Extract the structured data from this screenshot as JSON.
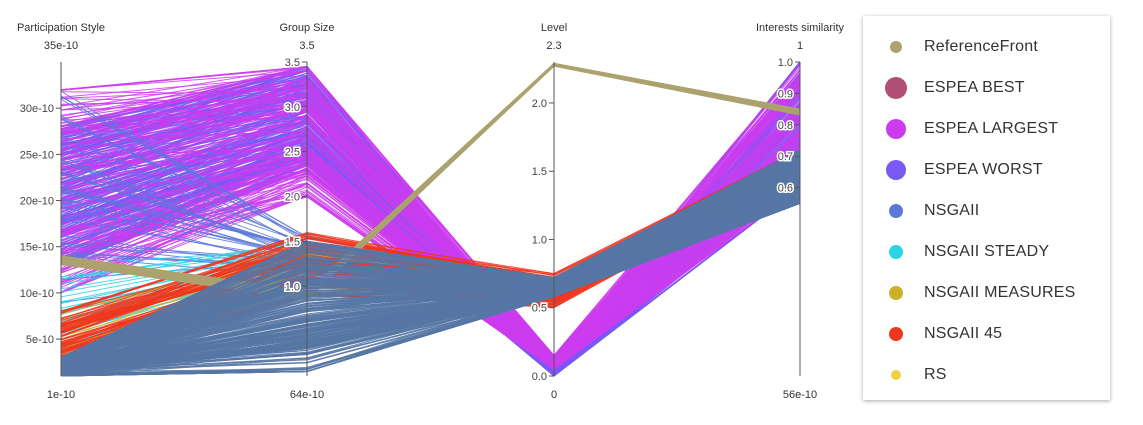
{
  "chart_data": {
    "type": "parallel-coordinates",
    "axes": [
      {
        "name": "Participation Style",
        "top_label": "35e-10",
        "bottom_label": "1e-10",
        "range": [
          1,
          35
        ],
        "scale_unit": "e-10",
        "ticks": [
          {
            "v": 5,
            "label": "5e-10"
          },
          {
            "v": 10,
            "label": "10e-10"
          },
          {
            "v": 15,
            "label": "15e-10"
          },
          {
            "v": 20,
            "label": "20e-10"
          },
          {
            "v": 25,
            "label": "25e-10"
          },
          {
            "v": 30,
            "label": "30e-10"
          }
        ]
      },
      {
        "name": "Group Size",
        "top_label": "3.5",
        "bottom_label": "64e-10",
        "range": [
          6.4e-09,
          3.5
        ],
        "ticks": [
          {
            "v": 1.0,
            "label": "1.0"
          },
          {
            "v": 1.5,
            "label": "1.5"
          },
          {
            "v": 2.0,
            "label": "2.0"
          },
          {
            "v": 2.5,
            "label": "2.5"
          },
          {
            "v": 3.0,
            "label": "3.0"
          },
          {
            "v": 3.5,
            "label": "3.5"
          }
        ]
      },
      {
        "name": "Level",
        "top_label": "2.3",
        "bottom_label": "0",
        "range": [
          0,
          2.3
        ],
        "ticks": [
          {
            "v": 0.0,
            "label": "0.0"
          },
          {
            "v": 0.5,
            "label": "0.5"
          },
          {
            "v": 1.0,
            "label": "1.0"
          },
          {
            "v": 1.5,
            "label": "1.5"
          },
          {
            "v": 2.0,
            "label": "2.0"
          }
        ]
      },
      {
        "name": "Interests similarity",
        "top_label": "1",
        "bottom_label": "56e-10",
        "range": [
          5.6e-09,
          1.0
        ],
        "ticks": [
          {
            "v": 0.6,
            "label": "0.6"
          },
          {
            "v": 0.7,
            "label": "0.7"
          },
          {
            "v": 0.8,
            "label": "0.8"
          },
          {
            "v": 0.9,
            "label": "0.9"
          },
          {
            "v": 1.0,
            "label": "1.0"
          }
        ]
      }
    ],
    "series": [
      {
        "name": "ReferenceFront",
        "color": "#ABA26E",
        "marker_size": 12,
        "bands": [
          [
            [
              13,
              14
            ],
            [
              0.85,
              0.95
            ],
            [
              2.27,
              2.29
            ],
            [
              0.83,
              0.85
            ]
          ]
        ]
      },
      {
        "name": "ESPEA BEST",
        "color": "#B04E75",
        "marker_size": 22,
        "bands": []
      },
      {
        "name": "ESPEA LARGEST",
        "color": "#CC3CEE",
        "marker_size": 20,
        "bands": [
          [
            [
              10,
              32
            ],
            [
              2.0,
              3.45
            ],
            [
              0.05,
              0.15
            ],
            [
              0.6,
              0.99
            ]
          ]
        ]
      },
      {
        "name": "ESPEA WORST",
        "color": "#7A58F4",
        "marker_size": 20,
        "bands": [
          [
            [
              13,
              28
            ],
            [
              2.3,
              3.45
            ],
            [
              0.0,
              0.05
            ],
            [
              0.6,
              1.0
            ]
          ]
        ]
      },
      {
        "name": "NSGAII",
        "color": "#5A78DC",
        "marker_size": 14,
        "bands": [
          [
            [
              8,
              32
            ],
            [
              1.1,
              1.55
            ],
            [
              0.6,
              0.72
            ],
            [
              0.66,
              0.72
            ]
          ]
        ]
      },
      {
        "name": "NSGAII STEADY",
        "color": "#2BD3E6",
        "marker_size": 14,
        "bands": [
          [
            [
              4,
              13
            ],
            [
              1.2,
              1.5
            ],
            [
              0.6,
              0.7
            ],
            [
              0.68,
              0.72
            ]
          ]
        ]
      },
      {
        "name": "NSGAII MEASURES",
        "color": "#CDB02A",
        "marker_size": 14,
        "bands": [
          [
            [
              1,
              8
            ],
            [
              0.9,
              1.5
            ],
            [
              0.55,
              0.7
            ],
            [
              0.66,
              0.7
            ]
          ]
        ]
      },
      {
        "name": "NSGAII 45",
        "color": "#F0351F",
        "marker_size": 14,
        "bands": [
          [
            [
              1,
              8
            ],
            [
              0.9,
              1.6
            ],
            [
              0.5,
              0.75
            ],
            [
              0.64,
              0.72
            ]
          ]
        ]
      },
      {
        "name": "RS",
        "color": "#EFD03E",
        "marker_size": 10,
        "bands": []
      }
    ],
    "dominant_band": {
      "color": "#5677A5",
      "values": [
        [
          1,
          3
        ],
        [
          0.05,
          1.5
        ],
        [
          0.58,
          0.72
        ],
        [
          0.55,
          0.72
        ]
      ]
    },
    "legend_position": "right"
  }
}
